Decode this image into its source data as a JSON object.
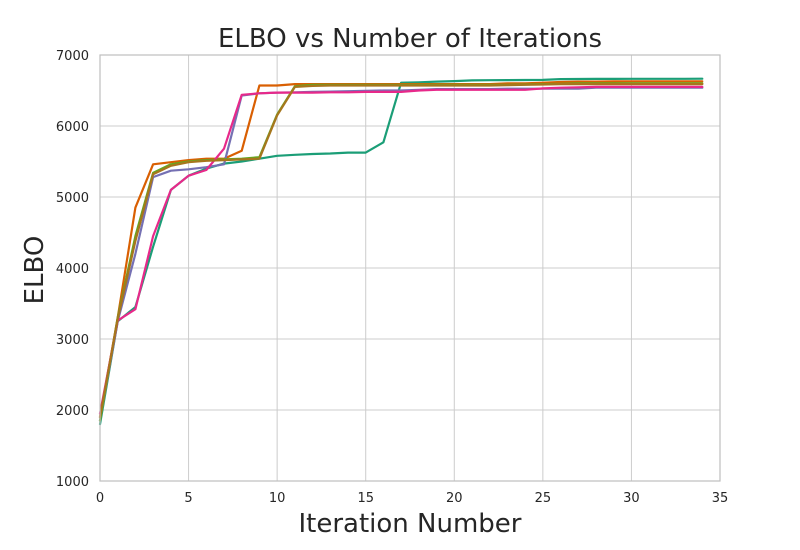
{
  "chart_data": {
    "type": "line",
    "title": "ELBO vs Number of Iterations",
    "xlabel": "Iteration Number",
    "ylabel": "ELBO",
    "xlim": [
      0,
      35
    ],
    "ylim": [
      1000,
      7000
    ],
    "xticks": [
      "0",
      "5",
      "10",
      "15",
      "20",
      "25",
      "30",
      "35"
    ],
    "yticks": [
      "1000",
      "2000",
      "3000",
      "4000",
      "5000",
      "6000",
      "7000"
    ],
    "grid": true,
    "legend": "none",
    "series": [
      {
        "color": "#1b9e77",
        "x": [
          0,
          1,
          2,
          3,
          4,
          5,
          6,
          7,
          8,
          9,
          10,
          11,
          12,
          13,
          14,
          15,
          16,
          17,
          18,
          19,
          20,
          21,
          22,
          23,
          24,
          25,
          26,
          27,
          28,
          29,
          30,
          31,
          32,
          33,
          34
        ],
        "y": [
          1800,
          3250,
          3450,
          4300,
          5100,
          5300,
          5400,
          5470,
          5500,
          5540,
          5580,
          5595,
          5605,
          5612,
          5625,
          5625,
          5770,
          6610,
          6615,
          6625,
          6632,
          6642,
          6645,
          6647,
          6648,
          6650,
          6660,
          6662,
          6663,
          6664,
          6665,
          6665,
          6665,
          6665,
          6666
        ]
      },
      {
        "color": "#d95f02",
        "x": [
          0,
          1,
          2,
          3,
          4,
          5,
          6,
          7,
          8,
          9,
          10,
          11,
          12,
          13,
          14,
          15,
          16,
          17,
          18,
          19,
          20,
          21,
          22,
          23,
          24,
          25,
          26,
          27,
          28,
          29,
          30,
          31,
          32,
          33,
          34
        ],
        "y": [
          1900,
          3300,
          4850,
          5460,
          5490,
          5520,
          5540,
          5540,
          5650,
          6570,
          6570,
          6590,
          6590,
          6590,
          6590,
          6590,
          6590,
          6590,
          6590,
          6590,
          6590,
          6590,
          6590,
          6600,
          6600,
          6610,
          6620,
          6625,
          6625,
          6628,
          6630,
          6630,
          6630,
          6630,
          6630
        ]
      },
      {
        "color": "#7570b3",
        "x": [
          0,
          1,
          2,
          3,
          4,
          5,
          6,
          7,
          8,
          9,
          10,
          11,
          12,
          13,
          14,
          15,
          16,
          17,
          18,
          19,
          20,
          21,
          22,
          23,
          24,
          25,
          26,
          27,
          28,
          29,
          30,
          31,
          32,
          33,
          34
        ],
        "y": [
          1850,
          3250,
          4200,
          5280,
          5370,
          5390,
          5420,
          5460,
          6430,
          6460,
          6470,
          6475,
          6480,
          6485,
          6490,
          6495,
          6500,
          6500,
          6510,
          6520,
          6520,
          6520,
          6520,
          6525,
          6525,
          6525,
          6525,
          6525,
          6540,
          6540,
          6540,
          6540,
          6540,
          6540,
          6540
        ]
      },
      {
        "color": "#66a61e",
        "x": [
          0,
          1,
          2,
          3,
          4,
          5,
          6,
          7,
          8,
          9,
          10,
          11,
          12,
          13,
          14,
          15,
          16,
          17,
          18,
          19,
          20,
          21,
          22,
          23,
          24,
          25,
          26,
          27,
          28,
          29,
          30,
          31,
          32,
          33,
          34
        ],
        "y": [
          1850,
          3300,
          4450,
          5340,
          5460,
          5500,
          5520,
          5530,
          5540,
          5560,
          6160,
          6560,
          6580,
          6580,
          6580,
          6580,
          6580,
          6580,
          6580,
          6580,
          6580,
          6580,
          6580,
          6580,
          6585,
          6590,
          6595,
          6600,
          6600,
          6600,
          6600,
          6600,
          6600,
          6600,
          6600
        ]
      },
      {
        "color": "#e7298a",
        "x": [
          0,
          1,
          2,
          3,
          4,
          5,
          6,
          7,
          8,
          9,
          10,
          11,
          12,
          13,
          14,
          15,
          16,
          17,
          18,
          19,
          20,
          21,
          22,
          23,
          24,
          25,
          26,
          27,
          28,
          29,
          30,
          31,
          32,
          33,
          34
        ],
        "y": [
          1950,
          3260,
          3420,
          4450,
          5100,
          5300,
          5380,
          5680,
          6440,
          6460,
          6470,
          6470,
          6470,
          6475,
          6475,
          6480,
          6480,
          6480,
          6500,
          6510,
          6510,
          6510,
          6510,
          6510,
          6510,
          6530,
          6540,
          6545,
          6550,
          6550,
          6550,
          6550,
          6550,
          6550,
          6550
        ]
      },
      {
        "color": "#a6761d",
        "x": [
          0,
          1,
          2,
          3,
          4,
          5,
          6,
          7,
          8,
          9,
          10,
          11,
          12,
          13,
          14,
          15,
          16,
          17,
          18,
          19,
          20,
          21,
          22,
          23,
          24,
          25,
          26,
          27,
          28,
          29,
          30,
          31,
          32,
          33,
          34
        ],
        "y": [
          1900,
          3280,
          4380,
          5320,
          5440,
          5490,
          5510,
          5520,
          5530,
          5540,
          6150,
          6550,
          6565,
          6570,
          6570,
          6570,
          6570,
          6570,
          6570,
          6570,
          6570,
          6570,
          6570,
          6575,
          6580,
          6585,
          6590,
          6590,
          6590,
          6590,
          6590,
          6590,
          6590,
          6590,
          6590
        ]
      }
    ]
  }
}
